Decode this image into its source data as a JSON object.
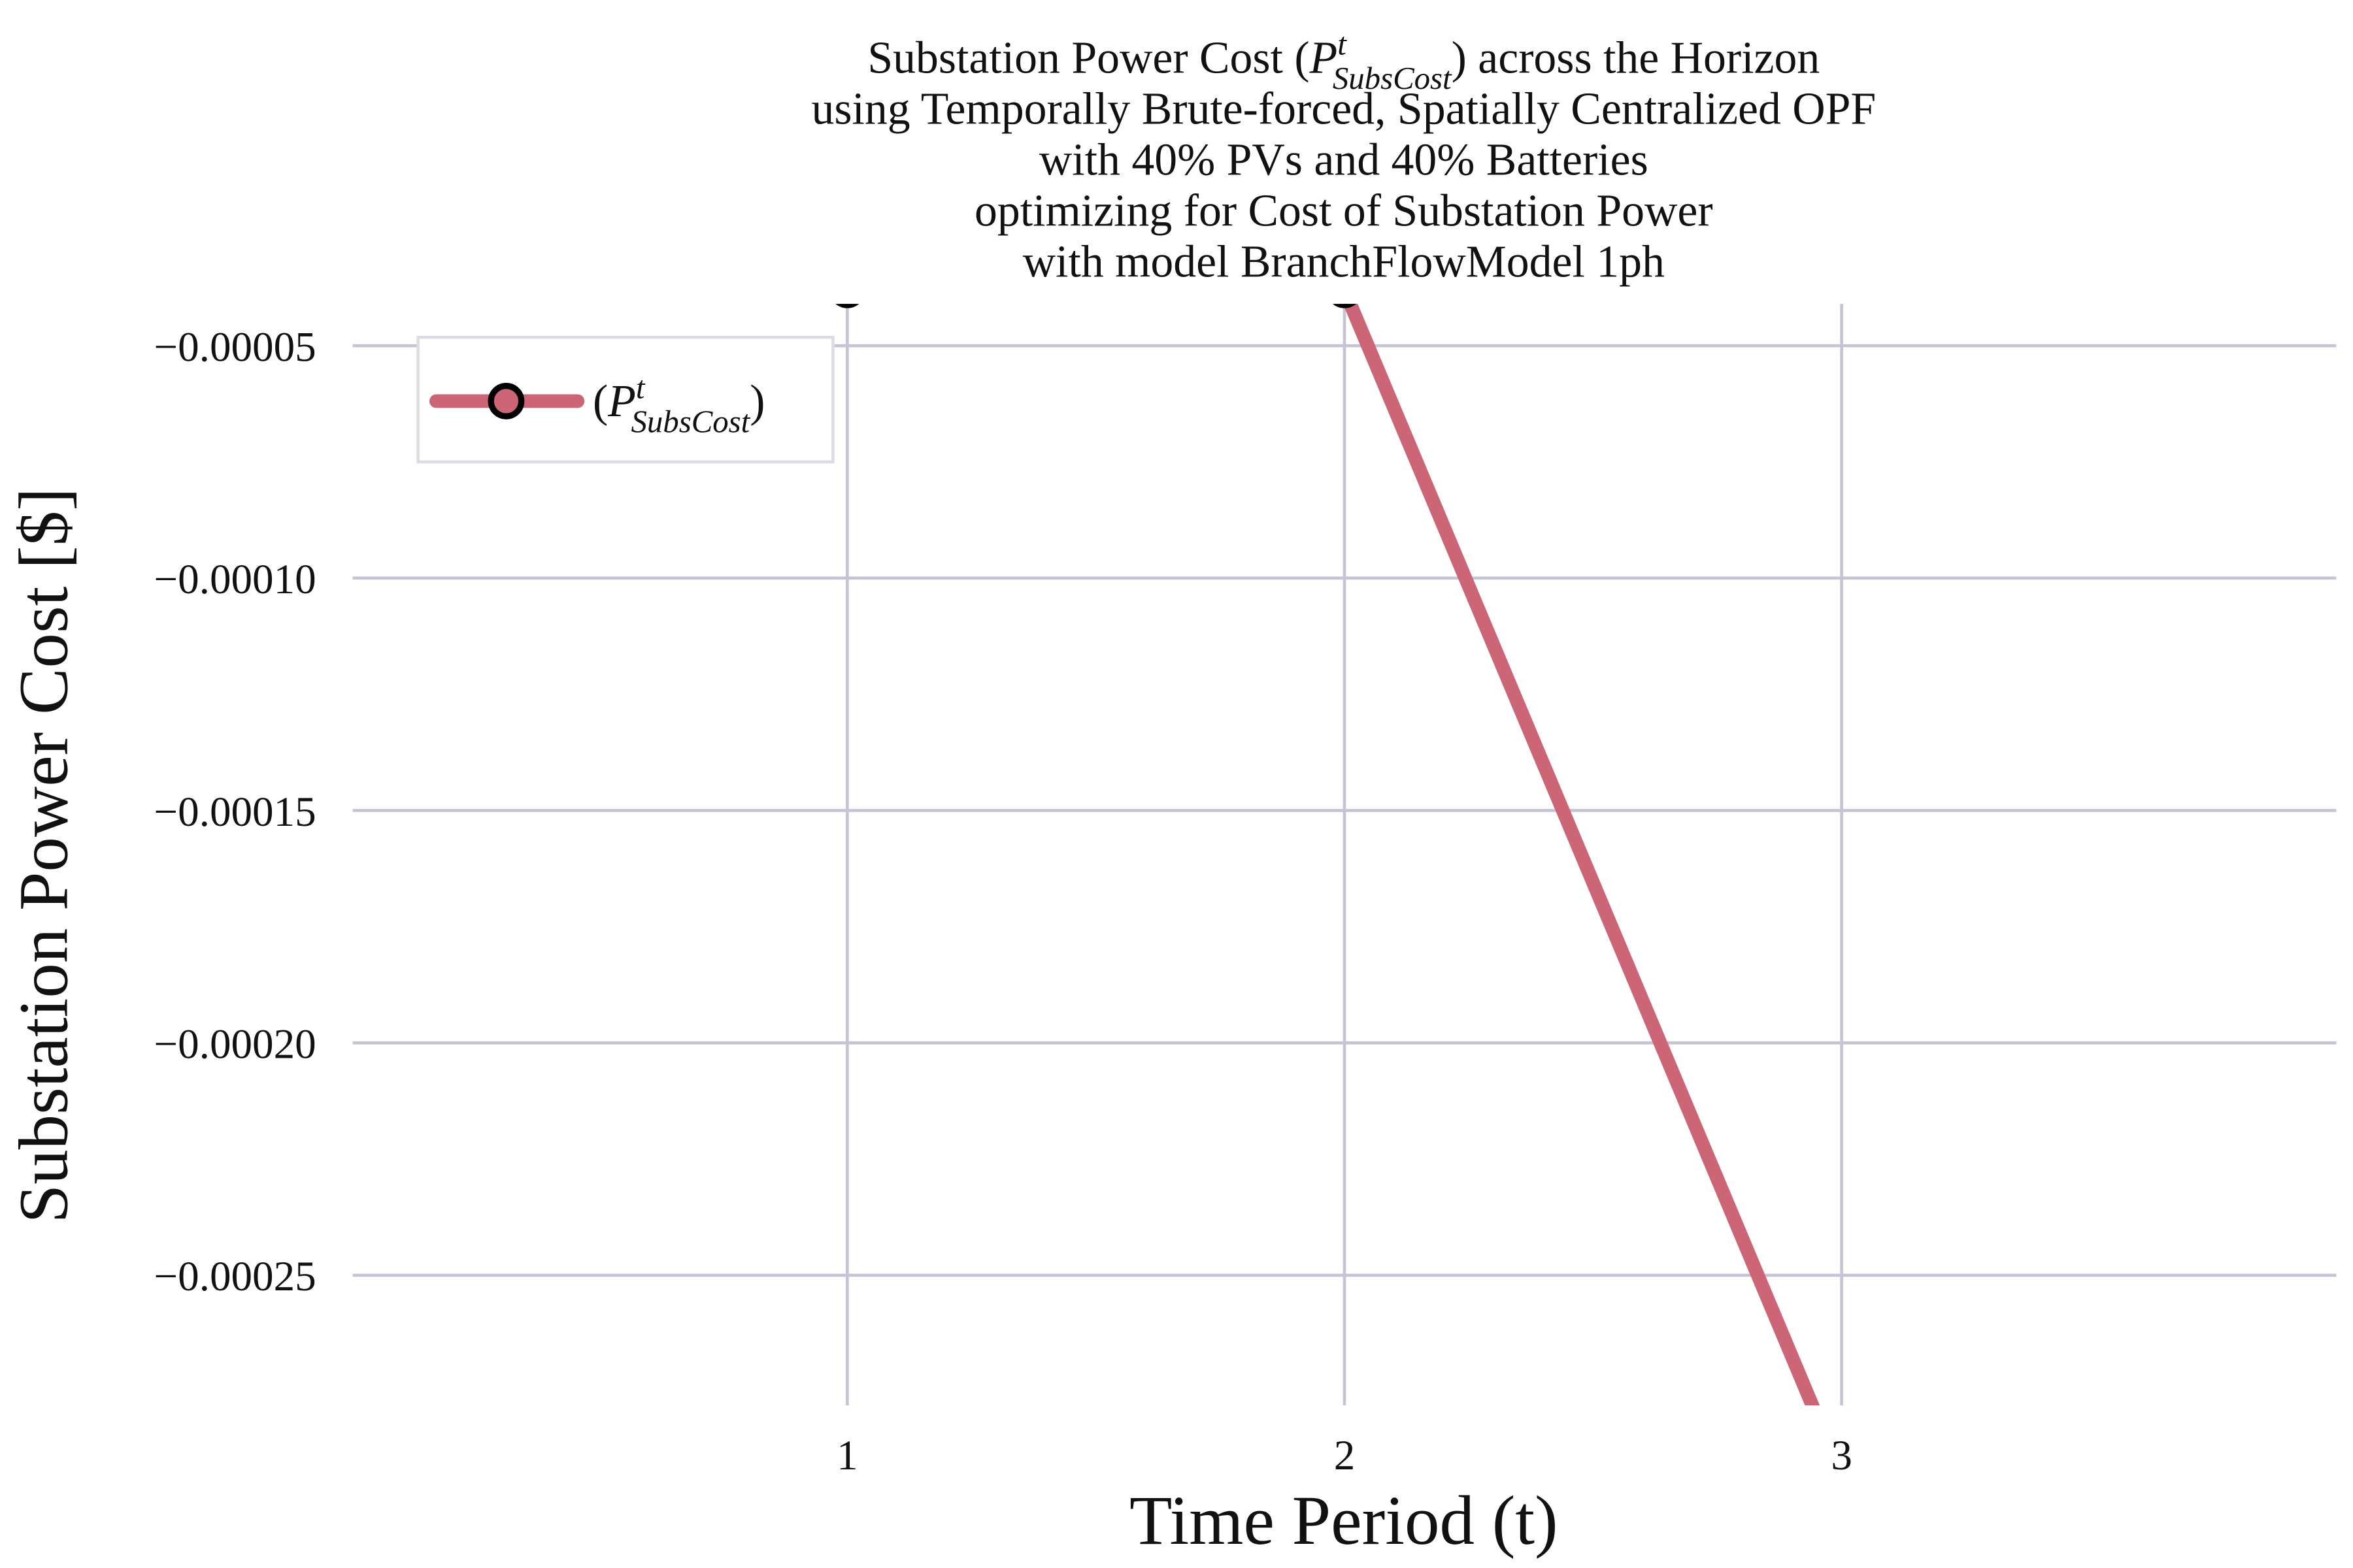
{
  "chart_data": {
    "type": "line",
    "title": [
      "Substation Power Cost (P^t_SubsCost) across the Horizon",
      "using Temporally Brute-forced, Spatially Centralized OPF",
      "with 40% PVs and 40% Batteries",
      "optimizing for Cost of Substation Power",
      "with model BranchFlowModel 1ph"
    ],
    "xlabel": "Time Period (t)",
    "ylabel": "Substation Power Cost [$]",
    "x": [
      1,
      2,
      3
    ],
    "series": [
      {
        "name": "(P^t_SubsCost)",
        "color": "#cc6677",
        "values": [
          -3.8e-05,
          -3.8e-05,
          -0.000293
        ]
      }
    ],
    "xlim": [
      0.005,
      3.995
    ],
    "ylim": [
      -0.000278,
      -4.1e-05
    ],
    "xticks": [
      1,
      2,
      3
    ],
    "yticks": [
      {
        "value": -0.00025,
        "label": "−0.00025"
      },
      {
        "value": -0.0002,
        "label": "−0.00020"
      },
      {
        "value": -0.00015,
        "label": "−0.00015"
      },
      {
        "value": -0.0001,
        "label": "−0.00010"
      },
      {
        "value": -5e-05,
        "label": "−0.00005"
      }
    ],
    "grid": true,
    "legend": "upper left"
  }
}
